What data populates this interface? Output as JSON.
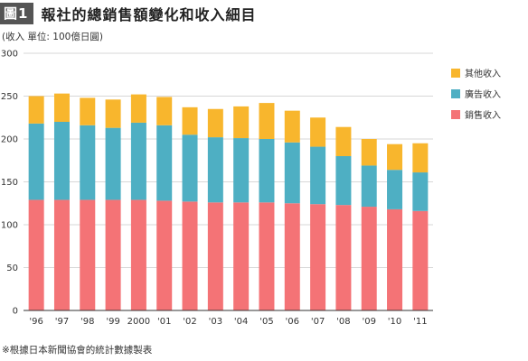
{
  "header": {
    "badge": "圖1",
    "title": "報社的總銷售額變化和收入細目"
  },
  "unit_note": "(收入 單位: 100億日圓)",
  "source_note": "※根據日本新聞協會的統計數據製表",
  "colors": {
    "sales": "#f47376",
    "advertising": "#4eafc3",
    "other": "#f8b62d",
    "grid": "#d7d7d7",
    "axis": "#333333"
  },
  "chart_data": {
    "type": "bar",
    "stacked": true,
    "categories": [
      "'96",
      "'97",
      "'98",
      "'99",
      "2000",
      "'01",
      "'02",
      "'03",
      "'04",
      "'05",
      "'06",
      "'07",
      "'08",
      "'09",
      "'10",
      "'11"
    ],
    "series": [
      {
        "name": "銷售收入",
        "color_key": "sales",
        "values": [
          129,
          129,
          129,
          129,
          129,
          128,
          127,
          126,
          126,
          126,
          125,
          124,
          123,
          121,
          118,
          116
        ]
      },
      {
        "name": "廣告收入",
        "color_key": "advertising",
        "values": [
          89,
          91,
          87,
          84,
          90,
          88,
          78,
          76,
          75,
          74,
          71,
          67,
          57,
          48,
          46,
          45
        ]
      },
      {
        "name": "其他收入",
        "color_key": "other",
        "values": [
          32,
          33,
          32,
          33,
          33,
          33,
          32,
          33,
          37,
          42,
          37,
          34,
          34,
          31,
          30,
          34
        ]
      }
    ],
    "y_ticks": [
      "0",
      "50",
      "100",
      "150",
      "200",
      "250",
      "300"
    ],
    "ylim": [
      0,
      300
    ],
    "grid": true,
    "legend_position": "right",
    "legend_order": [
      "其他收入",
      "廣告收入",
      "銷售收入"
    ]
  }
}
